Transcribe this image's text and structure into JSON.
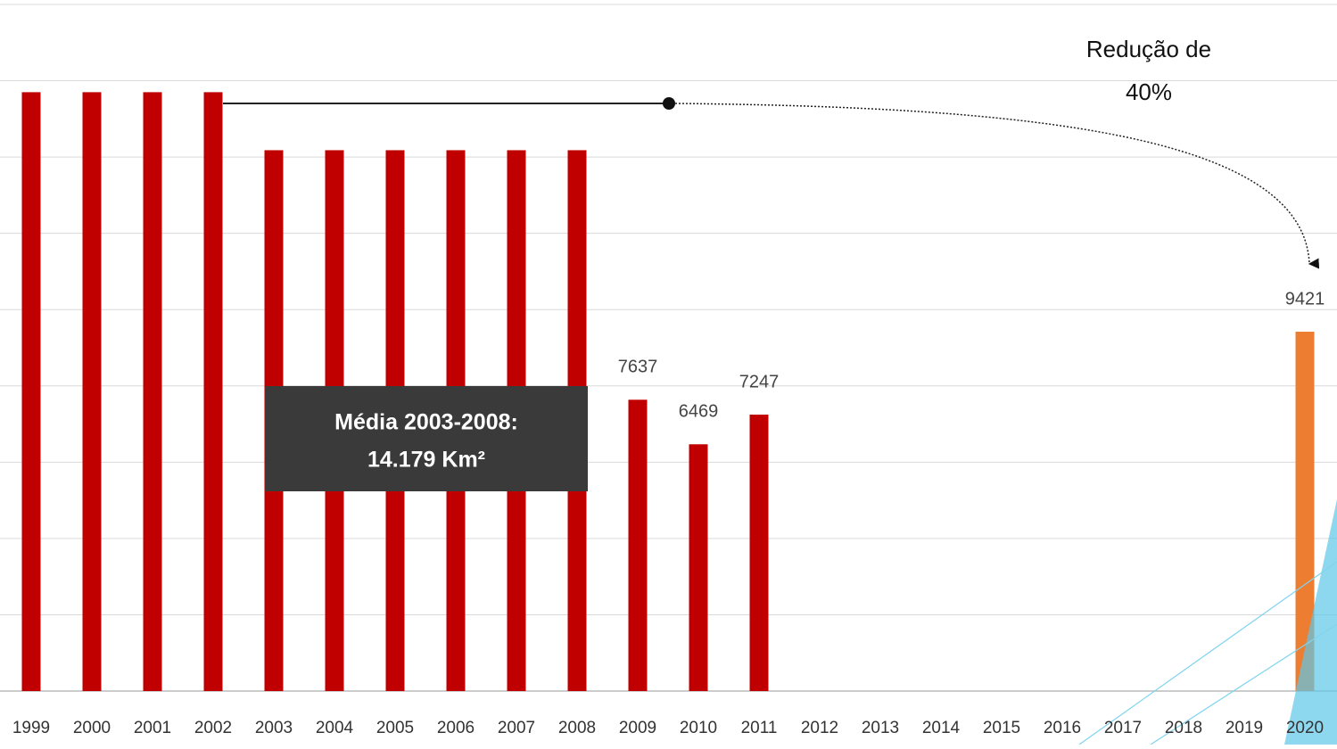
{
  "chart_data": {
    "type": "bar",
    "categories": [
      "1999",
      "2000",
      "2001",
      "2002",
      "2003",
      "2004",
      "2005",
      "2006",
      "2007",
      "2008",
      "2009",
      "2010",
      "2011",
      "2012",
      "2013",
      "2014",
      "2015",
      "2016",
      "2017",
      "2018",
      "2019",
      "2020"
    ],
    "values": [
      15700,
      15700,
      15700,
      15700,
      14179,
      14179,
      14179,
      14179,
      14179,
      14179,
      7637,
      6469,
      7247,
      null,
      null,
      null,
      null,
      null,
      null,
      null,
      null,
      9421
    ],
    "value_labels": [
      null,
      null,
      null,
      null,
      null,
      null,
      null,
      null,
      null,
      null,
      "7637",
      "6469",
      "7247",
      null,
      null,
      null,
      null,
      null,
      null,
      null,
      null,
      "9421"
    ],
    "colors": [
      "#c00000",
      "#c00000",
      "#c00000",
      "#c00000",
      "#c00000",
      "#c00000",
      "#c00000",
      "#c00000",
      "#c00000",
      "#c00000",
      "#c00000",
      "#c00000",
      "#c00000",
      null,
      null,
      null,
      null,
      null,
      null,
      null,
      null,
      "#ed7d31"
    ],
    "ylim": [
      0,
      18000
    ],
    "yticks": [
      0,
      2000,
      4000,
      6000,
      8000,
      10000,
      12000,
      14000,
      16000,
      18000
    ],
    "grid": true,
    "annotations": {
      "box": [
        "Média 2003-2008:",
        "14.179 Km²"
      ],
      "target": [
        "Redução de",
        "40%"
      ]
    }
  }
}
